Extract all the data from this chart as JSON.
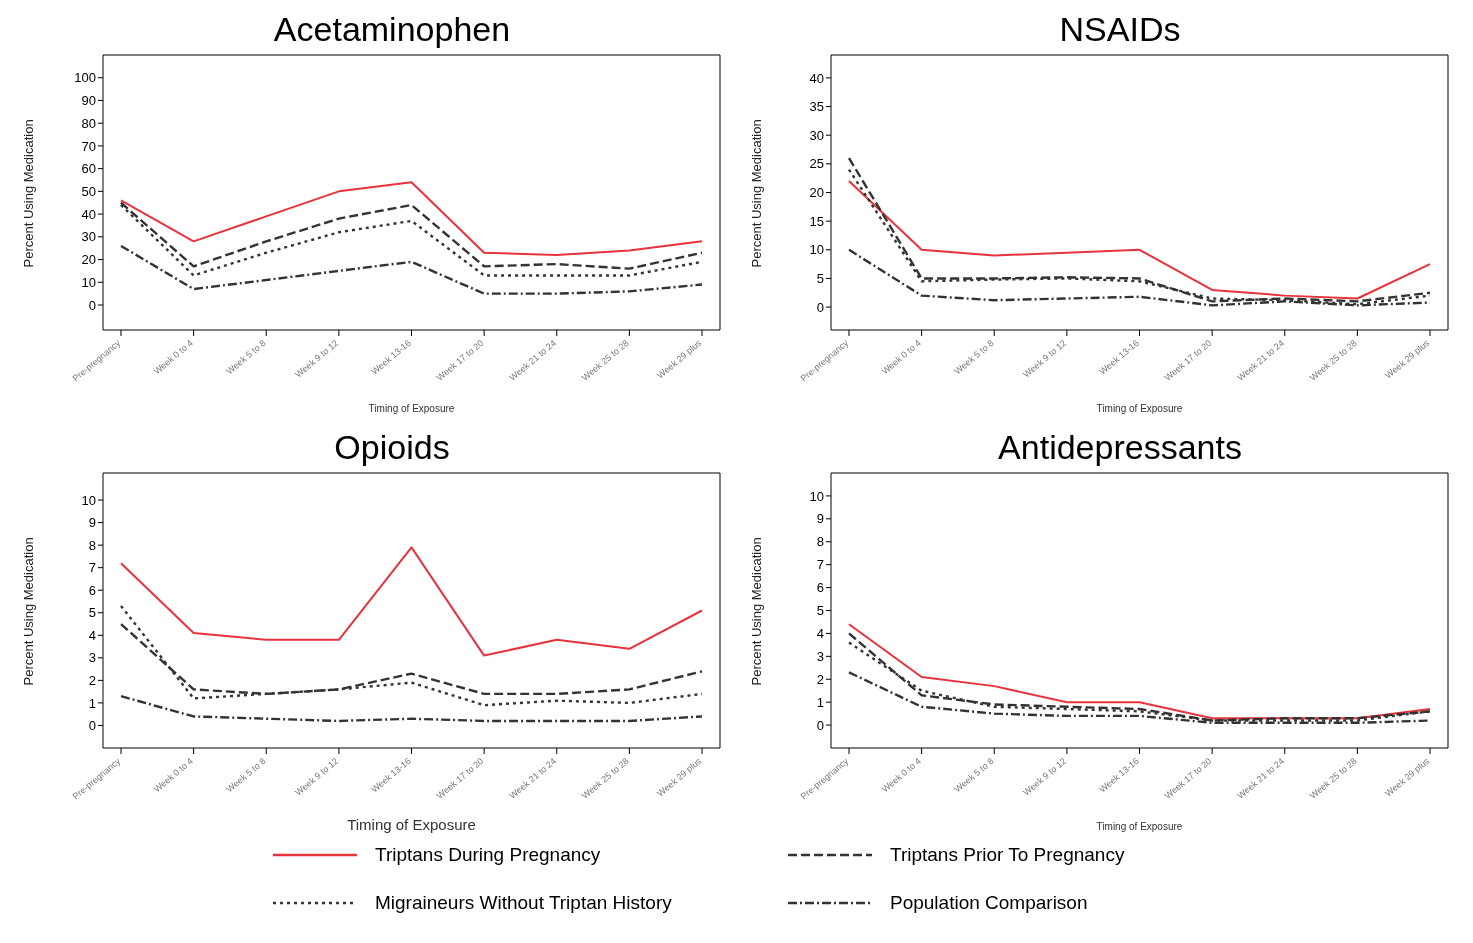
{
  "chart_data": [
    {
      "type": "line",
      "title": "Acetaminophen",
      "xlabel": "Timing of Exposure",
      "ylabel": "Percent Using Medication",
      "categories": [
        "Pre-pregnancy",
        "Week 0 to 4",
        "Week 5 to 8",
        "Week 9 to 12",
        "Week 13-16",
        "Week 17 to 20",
        "Week 21 to 24",
        "Week 25 to 28",
        "Week 29 plus"
      ],
      "ylim": [
        -11,
        110
      ],
      "yticks": [
        0,
        10,
        20,
        30,
        40,
        50,
        60,
        70,
        80,
        90,
        100
      ],
      "grid": false,
      "marker": "none",
      "legend": "bottom",
      "series": [
        {
          "name": "Triptans During Pregnancy",
          "color": "#e8323c",
          "line_style": "solid",
          "values": [
            46,
            28,
            39,
            50,
            54,
            23,
            22,
            24,
            28
          ]
        },
        {
          "name": "Triptans Prior To Pregnancy",
          "color": "#333333",
          "line_style": "dashed",
          "values": [
            45,
            17,
            28,
            38,
            44,
            17,
            18,
            16,
            23
          ]
        },
        {
          "name": "Migraineurs Without Triptan History",
          "color": "#333333",
          "line_style": "dotted",
          "values": [
            44,
            13,
            23,
            32,
            37,
            13,
            13,
            13,
            19
          ]
        },
        {
          "name": "Population Comparison",
          "color": "#333333",
          "line_style": "dashdot",
          "values": [
            26,
            7,
            11,
            15,
            19,
            5,
            5,
            6,
            9
          ]
        }
      ]
    },
    {
      "type": "line",
      "title": "NSAIDs",
      "xlabel": "Timing of Exposure",
      "ylabel": "Percent Using Medication",
      "categories": [
        "Pre-pregnancy",
        "Week 0 to 4",
        "Week 5 to 8",
        "Week 9 to 12",
        "Week 13-16",
        "Week 17 to 20",
        "Week 21 to 24",
        "Week 25 to 28",
        "Week 29 plus"
      ],
      "ylim": [
        -4,
        44
      ],
      "yticks": [
        0,
        5,
        10,
        15,
        20,
        25,
        30,
        35,
        40
      ],
      "grid": false,
      "marker": "none",
      "series": [
        {
          "color": "#e8323c",
          "line_style": "solid",
          "values": [
            22,
            10,
            9,
            9.5,
            10,
            3,
            2,
            1.5,
            7.5
          ]
        },
        {
          "color": "#333333",
          "line_style": "dashed",
          "values": [
            26,
            5,
            5,
            5.2,
            5,
            1,
            1.5,
            1,
            2.5
          ]
        },
        {
          "color": "#333333",
          "line_style": "dotted",
          "values": [
            24,
            4.5,
            4.8,
            5,
            4.5,
            1.5,
            1.2,
            0.5,
            2
          ]
        },
        {
          "color": "#333333",
          "line_style": "dashdot",
          "values": [
            10,
            2,
            1.2,
            1.5,
            1.8,
            0.3,
            1,
            0.3,
            0.8
          ]
        }
      ]
    },
    {
      "type": "line",
      "title": "Opioids",
      "xlabel": "Timing of Exposure",
      "ylabel": "Percent Using Medication",
      "categories": [
        "Pre-pregnancy",
        "Week 0 to 4",
        "Week 5 to 8",
        "Week 9 to 12",
        "Week 13-16",
        "Week 17 to 20",
        "Week 21 to 24",
        "Week 25 to 28",
        "Week 29 plus"
      ],
      "ylim": [
        -1,
        11.2
      ],
      "yticks": [
        0,
        1,
        2,
        3,
        4,
        5,
        6,
        7,
        8,
        9,
        10
      ],
      "grid": false,
      "marker": "none",
      "series": [
        {
          "color": "#e8323c",
          "line_style": "solid",
          "values": [
            7.2,
            4.1,
            3.8,
            3.8,
            7.9,
            3.1,
            3.8,
            3.4,
            5.1
          ]
        },
        {
          "color": "#333333",
          "line_style": "dashed",
          "values": [
            4.5,
            1.6,
            1.4,
            1.6,
            2.3,
            1.4,
            1.4,
            1.6,
            2.4
          ]
        },
        {
          "color": "#333333",
          "line_style": "dotted",
          "values": [
            5.3,
            1.2,
            1.4,
            1.6,
            1.9,
            0.9,
            1.1,
            1.0,
            1.4
          ]
        },
        {
          "color": "#333333",
          "line_style": "dashdot",
          "values": [
            1.3,
            0.4,
            0.3,
            0.2,
            0.3,
            0.2,
            0.2,
            0.2,
            0.4
          ]
        }
      ]
    },
    {
      "type": "line",
      "title": "Antidepressants",
      "xlabel": "Timing of Exposure",
      "ylabel": "Percent Using Medication",
      "categories": [
        "Pre-pregnancy",
        "Week 0 to 4",
        "Week 5 to 8",
        "Week 9 to 12",
        "Week 13-16",
        "Week 17 to 20",
        "Week 21 to 24",
        "Week 25 to 28",
        "Week 29 plus"
      ],
      "ylim": [
        -1,
        11
      ],
      "yticks": [
        0,
        1,
        2,
        3,
        4,
        5,
        6,
        7,
        8,
        9,
        10
      ],
      "grid": false,
      "marker": "none",
      "series": [
        {
          "color": "#e8323c",
          "line_style": "solid",
          "values": [
            4.4,
            2.1,
            1.7,
            1.0,
            1.0,
            0.3,
            0.3,
            0.3,
            0.7
          ]
        },
        {
          "color": "#333333",
          "line_style": "dashed",
          "values": [
            4.0,
            1.3,
            0.9,
            0.8,
            0.7,
            0.2,
            0.3,
            0.3,
            0.6
          ]
        },
        {
          "color": "#333333",
          "line_style": "dotted",
          "values": [
            3.6,
            1.5,
            0.8,
            0.7,
            0.6,
            0.2,
            0.2,
            0.2,
            0.6
          ]
        },
        {
          "color": "#333333",
          "line_style": "dashdot",
          "values": [
            2.3,
            0.8,
            0.5,
            0.4,
            0.4,
            0.1,
            0.1,
            0.1,
            0.2
          ]
        }
      ]
    }
  ]
}
